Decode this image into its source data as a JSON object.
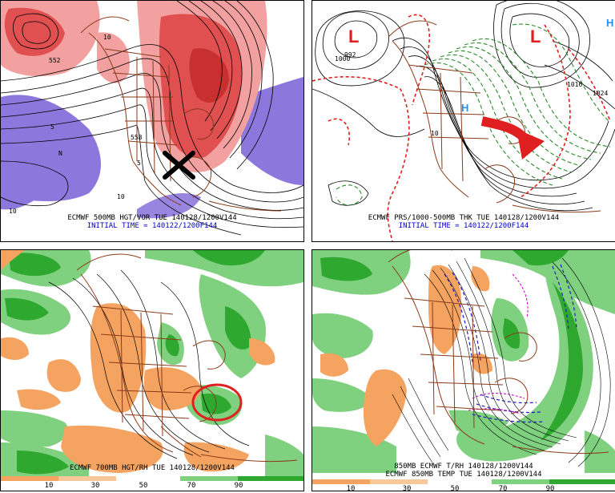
{
  "colors": {
    "vorticity_red": "#e05050",
    "vorticity_pink": "#f2a0a0",
    "vorticity_purple": "#8c78dc",
    "geography_brown": "#8b3a1a",
    "rh_dry_orange": "#f4a460",
    "rh_moist_light_green": "#7fd07f",
    "rh_moist_green": "#2ea82e",
    "thickness_red_dashed": "#e02020",
    "thickness_green_dashed": "#2a8a2a",
    "temp_blue_dashed": "#2020c0",
    "temp_magenta": "#c000c0",
    "caption_blue": "#0000c8",
    "annotation_red": "#e02020"
  },
  "panels": {
    "top_left": {
      "caption_line1": "ECMWF 500MB HGT/VOR TUE 140128/1200V144",
      "caption_line2": "INITIAL TIME = 140122/1200F144",
      "contour_labels": [
        "552",
        "558",
        "5",
        "5",
        "N",
        "10",
        "10",
        "10"
      ],
      "annotation": "x-mark"
    },
    "top_right": {
      "caption_line1": "ECMWF PRS/1000-500MB THK TUE 140128/1200V144",
      "caption_line2": "INITIAL TIME = 140122/1200F144",
      "pressure_labels": [
        "992",
        "1000",
        "1016",
        "1024",
        "10"
      ],
      "low_marker": "L",
      "high_marker": "H",
      "annotation": "red-curved-arrow"
    },
    "bottom_left": {
      "caption_line1": "ECMWF 700MB HGT/RH TUE 140128/1200V144",
      "annotation": "red-circle",
      "colorbar_ticks": [
        "10",
        "30",
        "50",
        "70",
        "90"
      ]
    },
    "bottom_right": {
      "caption_line1": "850MB ECMWF T/RH 140128/1200V144",
      "caption_line2": "ECMWF 850MB TEMP TUE 140128/1200V144",
      "colorbar_ticks": [
        "10",
        "30",
        "50",
        "70",
        "90"
      ]
    }
  }
}
